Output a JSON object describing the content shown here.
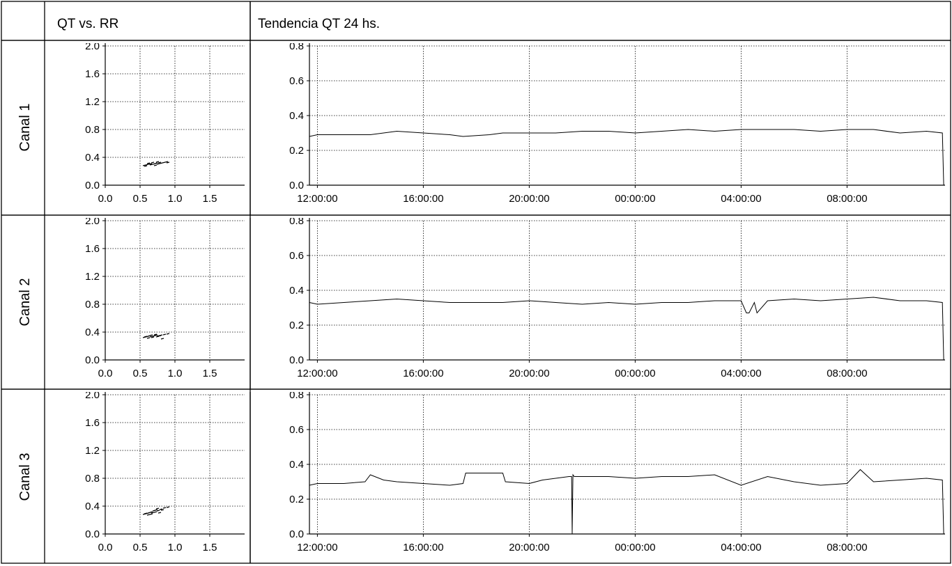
{
  "headers": {
    "scatter": "QT vs. RR",
    "trend": "Tendencia QT 24 hs."
  },
  "channels": [
    {
      "label": "Canal 1"
    },
    {
      "label": "Canal 2"
    },
    {
      "label": "Canal 3"
    }
  ],
  "chart_data": [
    {
      "type": "scatter",
      "panel": "QT vs. RR",
      "channel": "Canal 1",
      "xlim": [
        0,
        2.0
      ],
      "ylim": [
        0,
        2.0
      ],
      "xticks": [
        "0.0",
        "0.5",
        "1.0",
        "1.5"
      ],
      "yticks": [
        "0.0",
        "0.4",
        "0.8",
        "1.2",
        "1.6",
        "2.0"
      ],
      "grid": true,
      "points": [
        [
          0.56,
          0.28
        ],
        [
          0.6,
          0.29
        ],
        [
          0.63,
          0.3
        ],
        [
          0.66,
          0.29
        ],
        [
          0.7,
          0.3
        ],
        [
          0.73,
          0.31
        ],
        [
          0.76,
          0.3
        ],
        [
          0.8,
          0.31
        ],
        [
          0.84,
          0.32
        ],
        [
          0.88,
          0.33
        ],
        [
          0.62,
          0.31
        ],
        [
          0.68,
          0.32
        ],
        [
          0.75,
          0.33
        ],
        [
          0.58,
          0.27
        ],
        [
          0.72,
          0.28
        ],
        [
          0.65,
          0.3
        ],
        [
          0.78,
          0.32
        ],
        [
          0.9,
          0.32
        ]
      ]
    },
    {
      "type": "scatter",
      "panel": "QT vs. RR",
      "channel": "Canal 2",
      "xlim": [
        0,
        2.0
      ],
      "ylim": [
        0,
        2.0
      ],
      "xticks": [
        "0.0",
        "0.5",
        "1.0",
        "1.5"
      ],
      "yticks": [
        "0.0",
        "0.4",
        "0.8",
        "1.2",
        "1.6",
        "2.0"
      ],
      "grid": true,
      "points": [
        [
          0.56,
          0.32
        ],
        [
          0.6,
          0.33
        ],
        [
          0.63,
          0.34
        ],
        [
          0.66,
          0.33
        ],
        [
          0.7,
          0.34
        ],
        [
          0.73,
          0.35
        ],
        [
          0.76,
          0.34
        ],
        [
          0.8,
          0.35
        ],
        [
          0.85,
          0.36
        ],
        [
          0.9,
          0.37
        ],
        [
          0.62,
          0.31
        ],
        [
          0.68,
          0.32
        ],
        [
          0.75,
          0.33
        ],
        [
          0.58,
          0.33
        ],
        [
          0.72,
          0.36
        ],
        [
          0.82,
          0.3
        ],
        [
          0.66,
          0.35
        ],
        [
          0.78,
          0.34
        ]
      ]
    },
    {
      "type": "scatter",
      "panel": "QT vs. RR",
      "channel": "Canal 3",
      "xlim": [
        0,
        2.0
      ],
      "ylim": [
        0,
        2.0
      ],
      "xticks": [
        "0.0",
        "0.5",
        "1.0",
        "1.5"
      ],
      "yticks": [
        "0.0",
        "0.4",
        "0.8",
        "1.2",
        "1.6",
        "2.0"
      ],
      "grid": true,
      "points": [
        [
          0.56,
          0.28
        ],
        [
          0.6,
          0.29
        ],
        [
          0.63,
          0.3
        ],
        [
          0.66,
          0.31
        ],
        [
          0.7,
          0.33
        ],
        [
          0.73,
          0.34
        ],
        [
          0.76,
          0.33
        ],
        [
          0.8,
          0.35
        ],
        [
          0.85,
          0.37
        ],
        [
          0.9,
          0.38
        ],
        [
          0.62,
          0.27
        ],
        [
          0.68,
          0.3
        ],
        [
          0.75,
          0.36
        ],
        [
          0.58,
          0.29
        ],
        [
          0.72,
          0.31
        ],
        [
          0.82,
          0.34
        ],
        [
          0.66,
          0.28
        ],
        [
          0.78,
          0.3
        ]
      ]
    },
    {
      "type": "line",
      "panel": "Tendencia QT 24 hs.",
      "channel": "Canal 1",
      "x_unit": "hours",
      "xlim": [
        11.7,
        35.7
      ],
      "ylim": [
        0,
        0.8
      ],
      "xticks": [
        "12:00:00",
        "16:00:00",
        "20:00:00",
        "00:00:00",
        "04:00:00",
        "08:00:00"
      ],
      "yticks": [
        "0.0",
        "0.2",
        "0.4",
        "0.6",
        "0.8"
      ],
      "grid": true,
      "x": [
        11.7,
        12.0,
        13.0,
        14.0,
        14.5,
        15.0,
        16.0,
        17.0,
        17.5,
        18.5,
        19.0,
        20.0,
        21.0,
        22.0,
        23.0,
        24.0,
        25.0,
        26.0,
        27.0,
        28.0,
        29.0,
        30.0,
        31.0,
        32.0,
        33.0,
        34.0,
        35.0,
        35.6,
        35.65
      ],
      "y": [
        0.28,
        0.29,
        0.29,
        0.29,
        0.3,
        0.31,
        0.3,
        0.29,
        0.28,
        0.29,
        0.3,
        0.3,
        0.3,
        0.31,
        0.31,
        0.3,
        0.31,
        0.32,
        0.31,
        0.32,
        0.32,
        0.32,
        0.31,
        0.32,
        0.32,
        0.3,
        0.31,
        0.3,
        0.0
      ]
    },
    {
      "type": "line",
      "panel": "Tendencia QT 24 hs.",
      "channel": "Canal 2",
      "x_unit": "hours",
      "xlim": [
        11.7,
        35.7
      ],
      "ylim": [
        0,
        0.8
      ],
      "xticks": [
        "12:00:00",
        "16:00:00",
        "20:00:00",
        "00:00:00",
        "04:00:00",
        "08:00:00"
      ],
      "yticks": [
        "0.0",
        "0.2",
        "0.4",
        "0.6",
        "0.8"
      ],
      "grid": true,
      "x": [
        11.7,
        12.0,
        13.0,
        14.0,
        15.0,
        16.0,
        17.0,
        18.0,
        19.0,
        20.0,
        21.0,
        22.0,
        23.0,
        24.0,
        25.0,
        26.0,
        27.0,
        28.0,
        28.2,
        28.3,
        28.5,
        28.6,
        29.0,
        30.0,
        31.0,
        32.0,
        33.0,
        34.0,
        35.0,
        35.6,
        35.65
      ],
      "y": [
        0.33,
        0.32,
        0.33,
        0.34,
        0.35,
        0.34,
        0.33,
        0.33,
        0.33,
        0.34,
        0.33,
        0.32,
        0.33,
        0.32,
        0.33,
        0.33,
        0.34,
        0.34,
        0.27,
        0.27,
        0.33,
        0.27,
        0.34,
        0.35,
        0.34,
        0.35,
        0.36,
        0.34,
        0.34,
        0.33,
        0.0
      ]
    },
    {
      "type": "line",
      "panel": "Tendencia QT 24 hs.",
      "channel": "Canal 3",
      "x_unit": "hours",
      "xlim": [
        11.7,
        35.7
      ],
      "ylim": [
        0,
        0.8
      ],
      "xticks": [
        "12:00:00",
        "16:00:00",
        "20:00:00",
        "00:00:00",
        "04:00:00",
        "08:00:00"
      ],
      "yticks": [
        "0.0",
        "0.2",
        "0.4",
        "0.6",
        "0.8"
      ],
      "grid": true,
      "x": [
        11.7,
        12.0,
        13.0,
        13.8,
        14.0,
        14.5,
        15.0,
        16.0,
        17.0,
        17.5,
        17.6,
        19.0,
        19.1,
        20.0,
        20.5,
        21.0,
        21.5,
        21.6,
        21.62,
        21.65,
        21.7,
        22.0,
        23.0,
        24.0,
        25.0,
        26.0,
        27.0,
        28.0,
        29.0,
        30.0,
        31.0,
        32.0,
        32.5,
        33.0,
        34.0,
        35.0,
        35.6,
        35.65
      ],
      "y": [
        0.28,
        0.29,
        0.29,
        0.3,
        0.34,
        0.31,
        0.3,
        0.29,
        0.28,
        0.29,
        0.35,
        0.35,
        0.3,
        0.29,
        0.31,
        0.32,
        0.33,
        0.33,
        0.0,
        0.34,
        0.33,
        0.33,
        0.33,
        0.32,
        0.33,
        0.33,
        0.34,
        0.28,
        0.33,
        0.3,
        0.28,
        0.29,
        0.37,
        0.3,
        0.31,
        0.32,
        0.31,
        0.0
      ]
    }
  ]
}
